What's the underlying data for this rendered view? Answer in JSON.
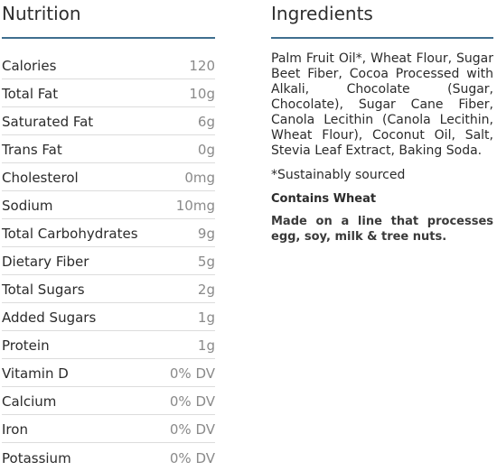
{
  "nutrition": {
    "heading": "Nutrition",
    "rows": [
      {
        "name": "Calories",
        "value": "120"
      },
      {
        "name": "Total Fat",
        "value": "10g"
      },
      {
        "name": "Saturated Fat",
        "value": "6g"
      },
      {
        "name": "Trans Fat",
        "value": "0g"
      },
      {
        "name": "Cholesterol",
        "value": "0mg"
      },
      {
        "name": "Sodium",
        "value": "10mg"
      },
      {
        "name": "Total Carbohydrates",
        "value": "9g"
      },
      {
        "name": "Dietary Fiber",
        "value": "5g"
      },
      {
        "name": "Total Sugars",
        "value": "2g"
      },
      {
        "name": "Added Sugars",
        "value": "1g"
      },
      {
        "name": "Protein",
        "value": "1g"
      },
      {
        "name": "Vitamin D",
        "value": "0% DV"
      },
      {
        "name": "Calcium",
        "value": "0% DV"
      },
      {
        "name": "Iron",
        "value": "0% DV"
      },
      {
        "name": "Potassium",
        "value": "0% DV"
      }
    ]
  },
  "ingredients": {
    "heading": "Ingredients",
    "text": "Palm Fruit Oil*, Wheat Flour, Sugar Beet Fiber, Cocoa Processed with Alkali, Chocolate (Sugar, Chocolate), Sugar Cane Fiber, Canola Lecithin (Canola Lecithin, Wheat Flour), Coconut Oil, Salt, Stevia Leaf Extract, Baking Soda.",
    "note": "*Sustainably sourced",
    "allergen": "Contains Wheat",
    "facility": "Made on a line that processes egg, soy, milk & tree nuts."
  },
  "colors": {
    "rule": "#3f6f8f",
    "value_text": "#8a8a8a"
  }
}
